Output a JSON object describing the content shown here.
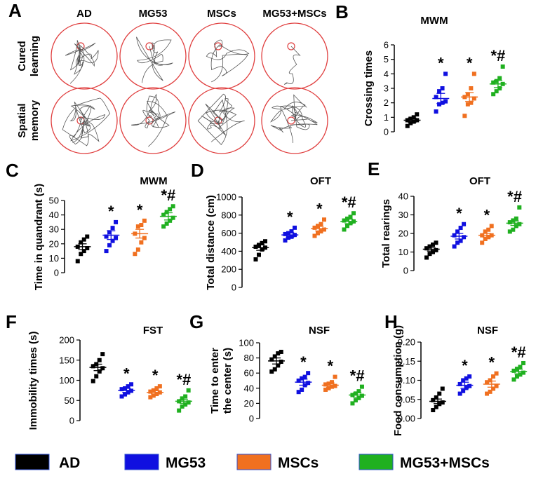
{
  "groups": [
    "AD",
    "MG53",
    "MSCs",
    "MG53+MSCs"
  ],
  "colors": {
    "AD": "#000000",
    "MG53": "#1010e0",
    "MSCs": "#f07020",
    "MG53+MSCs": "#20b020",
    "circle": "#e04040"
  },
  "panel_a": {
    "letter": "A",
    "columns": [
      "AD",
      "MG53",
      "MSCs",
      "MG53+MSCs"
    ],
    "rows": [
      "Cured\nlearning",
      "Spatial\nmemory"
    ]
  },
  "legend": [
    "AD",
    "MG53",
    "MSCs",
    "MG53+MSCs"
  ],
  "chart_data": [
    {
      "panel": "B",
      "type": "scatter",
      "title": "MWM",
      "ylabel": "Crossing times",
      "ylim": [
        0,
        6
      ],
      "yticks": [
        "0",
        "1",
        "2",
        "3",
        "4",
        "5",
        "6"
      ],
      "ytick_values": [
        0,
        1,
        2,
        3,
        4,
        5,
        6
      ],
      "means": [
        0.8,
        2.3,
        2.4,
        3.3
      ],
      "sem": [
        0.15,
        0.35,
        0.3,
        0.25
      ],
      "points": [
        [
          0.4,
          0.6,
          0.7,
          0.8,
          0.8,
          0.9,
          1.0,
          1.2
        ],
        [
          1.4,
          1.9,
          2.0,
          2.1,
          2.4,
          2.8,
          3.0,
          4.0
        ],
        [
          1.1,
          1.9,
          2.0,
          2.3,
          2.4,
          2.6,
          3.0,
          4.0
        ],
        [
          2.6,
          2.8,
          3.0,
          3.3,
          3.4,
          3.5,
          3.7,
          4.5
        ]
      ],
      "annotations": [
        "",
        "*",
        "*",
        "*#"
      ]
    },
    {
      "panel": "C",
      "type": "scatter",
      "title": "MWM",
      "ylabel": "Time in quandrant (s)",
      "ylim": [
        0,
        50
      ],
      "yticks": [
        "0",
        "10",
        "20",
        "30",
        "40",
        "50"
      ],
      "ytick_values": [
        0,
        10,
        20,
        30,
        40,
        50
      ],
      "means": [
        18,
        26,
        27,
        39
      ],
      "sem": [
        2,
        3,
        3,
        2.5
      ],
      "points": [
        [
          8,
          13,
          15,
          17,
          18,
          21,
          23,
          25
        ],
        [
          15,
          19,
          22,
          24,
          25,
          28,
          31,
          35
        ],
        [
          13,
          16,
          21,
          24,
          27,
          32,
          33,
          36
        ],
        [
          32,
          34,
          36,
          38,
          40,
          42,
          44,
          46
        ]
      ],
      "annotations": [
        "",
        "*",
        "*",
        "*#"
      ]
    },
    {
      "panel": "D",
      "type": "scatter",
      "title": "OFT",
      "ylabel": "Total distance (cm)",
      "ylim": [
        0,
        1000
      ],
      "yticks": [
        "0",
        "200",
        "400",
        "600",
        "800",
        "1000"
      ],
      "ytick_values": [
        0,
        200,
        400,
        600,
        800,
        1000
      ],
      "means": [
        440,
        580,
        650,
        730
      ],
      "sem": [
        30,
        25,
        25,
        25
      ],
      "points": [
        [
          310,
          360,
          420,
          440,
          450,
          470,
          490,
          510
        ],
        [
          520,
          550,
          560,
          580,
          590,
          600,
          620,
          660
        ],
        [
          570,
          600,
          620,
          640,
          660,
          680,
          700,
          750
        ],
        [
          640,
          680,
          710,
          730,
          740,
          760,
          780,
          820
        ]
      ],
      "annotations": [
        "",
        "*",
        "*",
        "*#"
      ]
    },
    {
      "panel": "E",
      "type": "scatter",
      "title": "OFT",
      "ylabel": "Total rearings",
      "ylim": [
        0,
        40
      ],
      "yticks": [
        "0",
        "10",
        "20",
        "30",
        "40"
      ],
      "ytick_values": [
        0,
        10,
        20,
        30,
        40
      ],
      "means": [
        11.5,
        18.5,
        19,
        25.5
      ],
      "sem": [
        1,
        1.5,
        1,
        1.2
      ],
      "points": [
        [
          7,
          9,
          10,
          11,
          12,
          13,
          14,
          15
        ],
        [
          13,
          15,
          16,
          18,
          19,
          21,
          23,
          25
        ],
        [
          15,
          17,
          18,
          19,
          19,
          21,
          22,
          24
        ],
        [
          21,
          22,
          24,
          25,
          26,
          27,
          28,
          34
        ]
      ],
      "annotations": [
        "",
        "*",
        "*",
        "*#"
      ]
    },
    {
      "panel": "F",
      "type": "scatter",
      "title": "FST",
      "ylabel": "Immobility times (s)",
      "ylim": [
        0,
        200
      ],
      "yticks": [
        "0",
        "50",
        "100",
        "150",
        "200"
      ],
      "ytick_values": [
        0,
        50,
        100,
        150,
        200
      ],
      "means": [
        132,
        75,
        70,
        48
      ],
      "sem": [
        8,
        5,
        4,
        5
      ],
      "points": [
        [
          98,
          110,
          122,
          130,
          135,
          140,
          150,
          165
        ],
        [
          60,
          65,
          70,
          74,
          78,
          80,
          85,
          90
        ],
        [
          58,
          62,
          66,
          70,
          72,
          75,
          80,
          85
        ],
        [
          25,
          35,
          40,
          45,
          48,
          55,
          60,
          75
        ]
      ],
      "annotations": [
        "",
        "*",
        "*",
        "*#"
      ]
    },
    {
      "panel": "G",
      "type": "scatter",
      "title": "NSF",
      "ylabel": "Time to enter\nthe center (s)",
      "ylim": [
        0,
        100
      ],
      "yticks": [
        "0",
        "20",
        "40",
        "60",
        "80",
        "100"
      ],
      "ytick_values": [
        0,
        20,
        40,
        60,
        80,
        100
      ],
      "means": [
        76,
        48,
        44,
        31
      ],
      "sem": [
        4,
        4,
        3,
        3
      ],
      "points": [
        [
          62,
          65,
          70,
          75,
          78,
          82,
          86,
          88
        ],
        [
          35,
          38,
          44,
          47,
          50,
          53,
          55,
          60
        ],
        [
          38,
          40,
          42,
          43,
          45,
          46,
          48,
          55
        ],
        [
          20,
          24,
          27,
          30,
          31,
          33,
          36,
          42
        ]
      ],
      "annotations": [
        "",
        "*",
        "*",
        "*#"
      ]
    },
    {
      "panel": "H",
      "type": "scatter",
      "title": "NSF",
      "ylabel": "Food consumption (g)",
      "ylim": [
        0,
        0.2
      ],
      "yticks": [
        "0.00",
        "0.05",
        "0.10",
        "0.15",
        "0.20"
      ],
      "ytick_values": [
        0,
        0.05,
        0.1,
        0.15,
        0.2
      ],
      "means": [
        0.045,
        0.087,
        0.09,
        0.123
      ],
      "sem": [
        0.006,
        0.008,
        0.008,
        0.006
      ],
      "points": [
        [
          0.022,
          0.03,
          0.038,
          0.042,
          0.048,
          0.055,
          0.065,
          0.078
        ],
        [
          0.065,
          0.072,
          0.08,
          0.085,
          0.09,
          0.1,
          0.105,
          0.11
        ],
        [
          0.065,
          0.07,
          0.078,
          0.085,
          0.095,
          0.1,
          0.11,
          0.118
        ],
        [
          0.102,
          0.11,
          0.115,
          0.12,
          0.125,
          0.13,
          0.135,
          0.145
        ]
      ],
      "annotations": [
        "",
        "*",
        "*",
        "*#"
      ]
    }
  ]
}
